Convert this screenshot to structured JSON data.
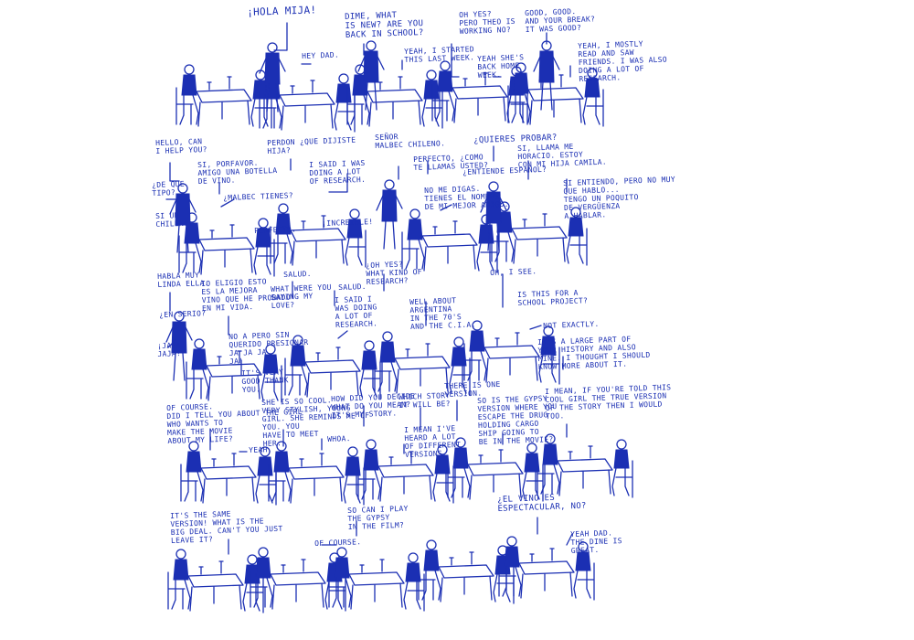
{
  "ink_color": "#1b2fb3",
  "background": "#ffffff",
  "rows": [
    {
      "panels": [
        {
          "lines": []
        },
        {
          "lines": [
            "¡HOLA MIJA!",
            "HEY DAD."
          ]
        },
        {
          "lines": [
            "DIME, WHAT\nIS NEW? ARE YOU\nBACK IN SCHOOL?",
            "YEAH, I STARTED\nTHIS LAST WEEK."
          ]
        },
        {
          "lines": [
            "OH YES?\nPERO THEO IS\nWORKING NO?",
            "YEAH SHE'S\nBACK HOME\nWEEK."
          ]
        },
        {
          "lines": [
            "GOOD, GOOD.\nAND YOUR BREAK?\nIT WAS GOOD?",
            "YEAH, I MOSTLY\nREAD AND SAW\nFRIENDS. I WAS ALSO\nDOING A LOT OF\nRESEARCH."
          ]
        }
      ]
    },
    {
      "panels": [
        {
          "lines": [
            "HELLO, CAN\nI HELP YOU?",
            "SI, PORFAVOR.\nAMIGO UNA BOTELLA\nDE VINO.",
            "¿DE QUE\nTIPO?",
            "¿MALBEC TIENES?",
            "SI UN\nCHILENO.",
            "PERFECTO."
          ]
        },
        {
          "lines": [
            "PERDON ¿QUE DIJISTE\nHIJA?",
            "I SAID I WAS\nDOING A LOT\nOF RESEARCH.",
            "SEÑOR\nMALBEC CHILENO.",
            "¡INCREIBLE!"
          ]
        },
        {
          "lines": [
            "PERFECTO, ¿COMO\nTE LLAMAS USTED?",
            "NO ME DIGAS.\nTIENES EL NOMBRE\nDE MI MEJOR AMIGO."
          ]
        },
        {
          "lines": [
            "¿QUIERES PROBAR?",
            "¿ENTIENDE ESPAÑOL?",
            "SI, LLAMA ME\nHORACIO. ESTOY\nCON MI HIJA CAMILA.",
            "SI ENTIENDO, PERO NO MUY\nQUE HABLO...\nTENGO UN POQUITO\nDE VERGÜENZA\nA HABLAR."
          ]
        }
      ]
    },
    {
      "panels": [
        {
          "lines": [
            "HABLA MUY\nLINDA ELLA.",
            "¿EN SERIO?",
            "¡JAJA\nJAJA!",
            "IO ELIGIO ESTO\nES LA MEJORA\nVINO QUE HE PROBADO\nEN MI VIDA.",
            "NO A PERO SIN\nQUERIDO PRESIONAR\nJA JA JA\nJA!",
            "IT'S VERY\nGOOD THANK\nYOU."
          ]
        },
        {
          "lines": [
            "SALUD.",
            "WHAT WERE YOU\nSAYING MY\nLOVE?",
            "SALUD.",
            "I SAID I\nWAS DOING\nA LOT OF\nRESEARCH."
          ]
        },
        {
          "lines": [
            "¿OH YES?\nWHAT KIND OF\nRESEARCH?",
            "WELL ABOUT\nARGENTINA\nIN THE 70'S\nAND THE C.I.A."
          ]
        },
        {
          "lines": [
            "OH, I SEE.",
            "IS THIS FOR A\nSCHOOL PROJECT?",
            "NOT EXACTLY.",
            "IT'S A LARGE PART OF\nYOUR HISTORY AND ALSO\nMINE. I THOUGHT I SHOULD\nKNOW MORE ABOUT IT."
          ]
        }
      ]
    },
    {
      "panels": [
        {
          "lines": [
            "OF COURSE.\nDID I TELL YOU ABOUT THE GIRL\nWHO WANTS TO\nMAKE THE MOVIE\nABOUT MY LIFE?",
            "YEAH."
          ]
        },
        {
          "lines": [
            "SHE IS SO COOL.\nVERY STYLISH, YOUNG\nGIRL. SHE REMINDS ME OF\nYOU. YOU\nHAVE TO MEET\nHER.",
            "WHOA."
          ]
        },
        {
          "lines": [
            "HOW DID YOU DECIDE\nWHAT DO YOU MEAN?\nIT'S MY STORY.",
            "WHICH STORY\nIT WILL BE?",
            "I MEAN I'VE\nHEARD A LOT\nOF DIFFERENT\nVERSIONS."
          ]
        },
        {
          "lines": [
            "THERE IS ONE\nVERSION.",
            "SO IS THE GYPSY\nVERSION WHERE YOU\nESCAPE THE DRUG\nHOLDING CARGO\nSHIP GOING TO\nBE IN THE MOVIE?"
          ]
        },
        {
          "lines": [
            "I MEAN, IF YOU'RE TOLD THIS\nCOOL GIRL THE TRUE VERSION\nOF THE STORY THEN I WOULD\nTOO."
          ]
        }
      ]
    },
    {
      "panels": [
        {
          "lines": [
            "IT'S THE SAME\nVERSION! WHAT IS THE\nBIG DEAL. CAN'T YOU JUST\nLEAVE IT?"
          ]
        },
        {
          "lines": []
        },
        {
          "lines": [
            "SO CAN I PLAY\nTHE GYPSY\nIN THE FILM?",
            "OF COURSE."
          ]
        },
        {
          "lines": []
        },
        {
          "lines": [
            "¿EL VINO ES\nESPECTACULAR, NO?",
            "YEAH DAD.\nTHE DINE IS\nGREAT."
          ]
        }
      ]
    }
  ]
}
